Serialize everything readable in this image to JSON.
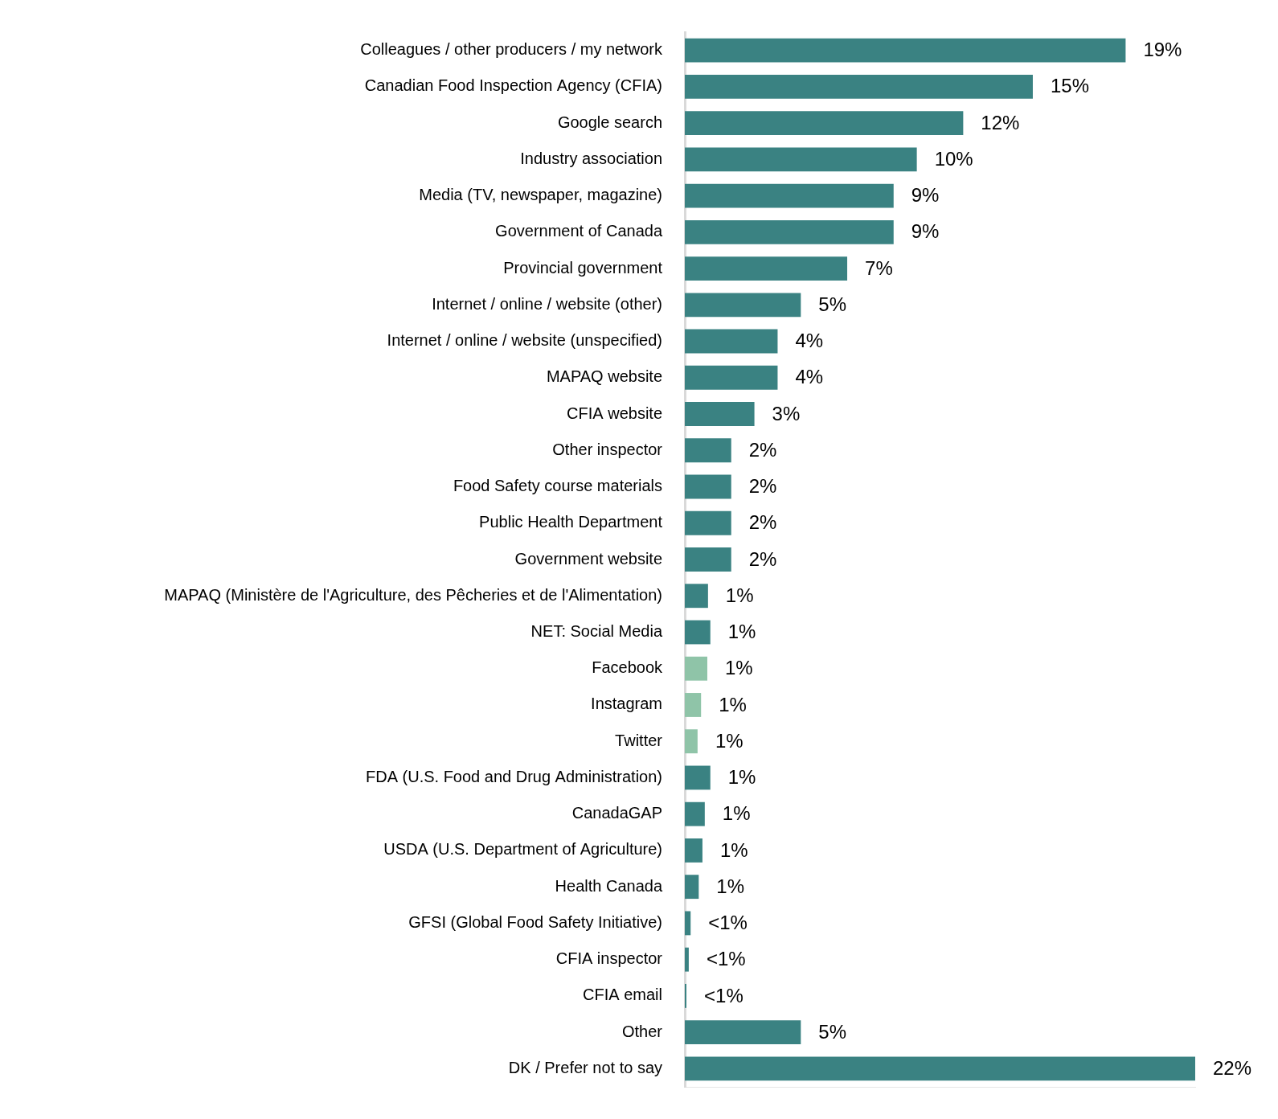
{
  "chart_data": {
    "type": "bar",
    "orientation": "horizontal",
    "categories": [
      "Colleagues / other producers / my network",
      "Canadian Food Inspection Agency (CFIA)",
      "Google search",
      "Industry association",
      "Media (TV, newspaper, magazine)",
      "Government of Canada",
      "Provincial government",
      "Internet / online / website (other)",
      "Internet / online / website (unspecified)",
      "MAPAQ website",
      "CFIA website",
      "Other inspector",
      "Food Safety course materials",
      "Public Health Department",
      "Government website",
      "MAPAQ (Ministère de l'Agriculture, des Pêcheries et de l'Alimentation)",
      "NET: Social Media",
      "Facebook",
      "Instagram",
      "Twitter",
      "FDA (U.S. Food and Drug Administration)",
      "CanadaGAP",
      "USDA (U.S. Department of Agriculture)",
      "Health Canada",
      "GFSI (Global Food Safety Initiative)",
      "CFIA inspector",
      "CFIA email",
      "Other",
      "DK / Prefer not to say"
    ],
    "values": [
      19,
      15,
      12,
      10,
      9,
      9,
      7,
      5,
      4,
      4,
      3,
      2,
      2,
      2,
      2,
      1,
      1.1,
      0.97,
      0.7,
      0.55,
      1.1,
      0.86,
      0.76,
      0.6,
      0.25,
      0.17,
      0.07,
      5,
      22
    ],
    "value_labels": [
      "19%",
      "15%",
      "12%",
      "10%",
      "9%",
      "9%",
      "7%",
      "5%",
      "4%",
      "4%",
      "3%",
      "2%",
      "2%",
      "2%",
      "2%",
      "1%",
      "1%",
      "1%",
      "1%",
      "1%",
      "1%",
      "1%",
      "1%",
      "1%",
      "<1%",
      "<1%",
      "<1%",
      "5%",
      "22%"
    ],
    "colors": [
      "#3a8282",
      "#3a8282",
      "#3a8282",
      "#3a8282",
      "#3a8282",
      "#3a8282",
      "#3a8282",
      "#3a8282",
      "#3a8282",
      "#3a8282",
      "#3a8282",
      "#3a8282",
      "#3a8282",
      "#3a8282",
      "#3a8282",
      "#3a8282",
      "#3a8282",
      "#8fc4a8",
      "#8fc4a8",
      "#8fc4a8",
      "#3a8282",
      "#3a8282",
      "#3a8282",
      "#3a8282",
      "#3a8282",
      "#3a8282",
      "#3a8282",
      "#3a8282",
      "#3a8282"
    ],
    "xlim": [
      0,
      22
    ],
    "grid": false,
    "data_labels": true,
    "tick_labels": "y"
  }
}
